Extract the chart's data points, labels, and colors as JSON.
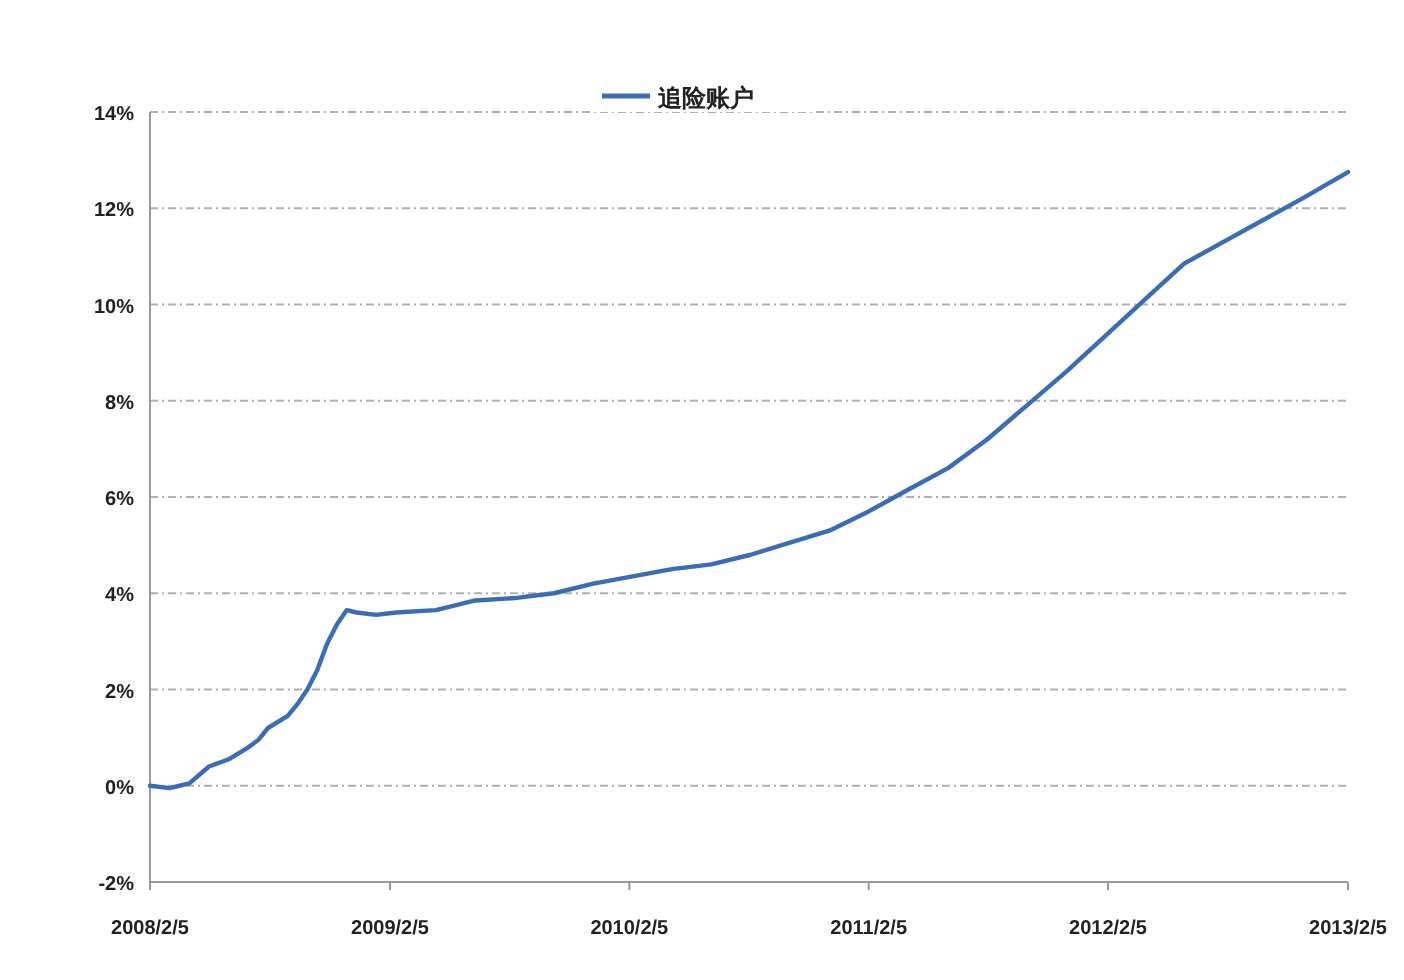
{
  "chart_data": {
    "type": "line",
    "legend": "top",
    "grid": "y",
    "line_style": "solid",
    "xlim": [
      "2008-02-05",
      "2013-02-05"
    ],
    "xticks": [
      {
        "value": "2008-02-05",
        "label": "2008/2/5"
      },
      {
        "value": "2009-02-05",
        "label": "2009/2/5"
      },
      {
        "value": "2010-02-05",
        "label": "2010/2/5"
      },
      {
        "value": "2011-02-05",
        "label": "2011/2/5"
      },
      {
        "value": "2012-02-05",
        "label": "2012/2/5"
      },
      {
        "value": "2013-02-05",
        "label": "2013/2/5"
      }
    ],
    "ylim": [
      -2,
      14
    ],
    "yticks": [
      {
        "value": -2,
        "label": "-2%"
      },
      {
        "value": 0,
        "label": "0%"
      },
      {
        "value": 2,
        "label": "2%"
      },
      {
        "value": 4,
        "label": "4%"
      },
      {
        "value": 6,
        "label": "6%"
      },
      {
        "value": 8,
        "label": "8%"
      },
      {
        "value": 10,
        "label": "10%"
      },
      {
        "value": 12,
        "label": "12%"
      },
      {
        "value": 14,
        "label": "14%"
      }
    ],
    "x": [
      "2008-02-05",
      "2008-03-06",
      "2008-04-05",
      "2008-05-05",
      "2008-06-04",
      "2008-07-04",
      "2008-07-19",
      "2008-08-03",
      "2008-09-02",
      "2008-09-17",
      "2008-10-02",
      "2008-10-17",
      "2008-11-01",
      "2008-11-16",
      "2008-12-01",
      "2008-12-16",
      "2009-01-15",
      "2009-02-14",
      "2009-04-16",
      "2009-06-15",
      "2009-08-14",
      "2009-10-13",
      "2009-12-12",
      "2010-02-10",
      "2010-04-11",
      "2010-06-10",
      "2010-08-09",
      "2010-10-08",
      "2010-12-07",
      "2011-02-05",
      "2011-04-06",
      "2011-06-06",
      "2011-08-05",
      "2011-10-04",
      "2011-12-03",
      "2012-02-01",
      "2012-04-01",
      "2012-05-31",
      "2012-07-30",
      "2012-09-28",
      "2012-11-27",
      "2013-02-05"
    ],
    "series": [
      {
        "name": "追险账户",
        "color": "#3a6db5",
        "values": [
          0,
          -0.05,
          0.05,
          0.4,
          0.55,
          0.8,
          0.95,
          1.2,
          1.45,
          1.7,
          2.0,
          2.4,
          2.95,
          3.35,
          3.65,
          3.6,
          3.55,
          3.6,
          3.65,
          3.85,
          3.9,
          4.0,
          4.2,
          4.35,
          4.5,
          4.6,
          4.8,
          5.05,
          5.3,
          5.7,
          6.15,
          6.6,
          7.2,
          7.9,
          8.6,
          9.35,
          10.1,
          10.85,
          11.3,
          11.75,
          12.2,
          12.75
        ]
      }
    ]
  }
}
